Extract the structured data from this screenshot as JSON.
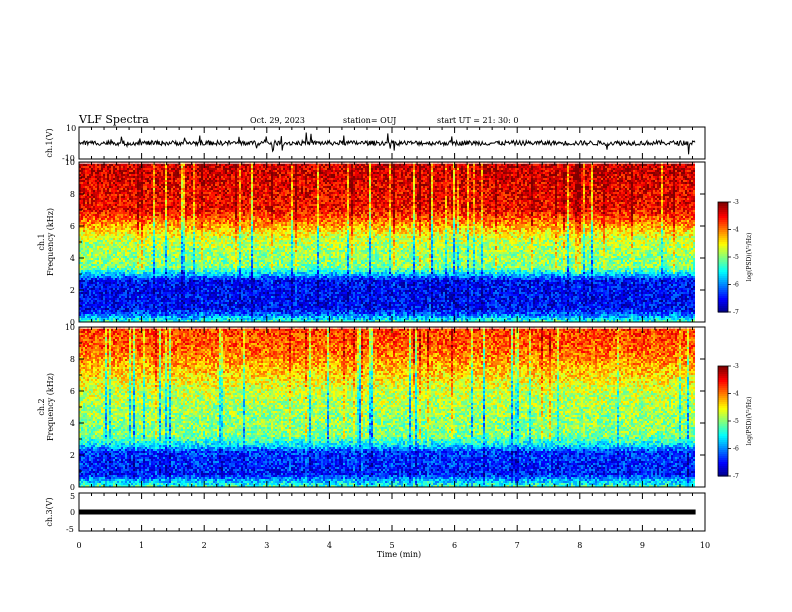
{
  "header": {
    "title": "VLF Spectra",
    "date": "Oct. 29, 2023",
    "station": "station= OUJ",
    "start": "start  UT =   21: 30: 0"
  },
  "chart_data": {
    "type": "heatmap",
    "xlabel": "Time  (min)",
    "xlim": [
      0,
      10
    ],
    "xticks": [
      "0",
      "1",
      "2",
      "3",
      "4",
      "5",
      "6",
      "7",
      "8",
      "9",
      "10"
    ],
    "data_end_min": 9.85,
    "panels": [
      {
        "name": "ch.1 waveform",
        "ylabel": "ch.1(V)",
        "ylim": [
          -10,
          10
        ],
        "yticks": [
          "10",
          "-10"
        ],
        "trace_level_v": 0,
        "trace_amplitude_v": 3
      },
      {
        "name": "ch.1 spectrogram",
        "ylabel_channel": "ch.1",
        "ylabel": "Frequency  (kHz)",
        "ylim": [
          0,
          10
        ],
        "yticks": [
          "0",
          "2",
          "4",
          "6",
          "8",
          "10"
        ],
        "colorbar_label": "log(PSD)(V²/Hz)",
        "colorbar_ticks": [
          "-3",
          "-4",
          "-5",
          "-6",
          "-7"
        ],
        "colorbar_range": [
          -7,
          -3
        ],
        "profile_khz": [
          0,
          0.4,
          0.8,
          2.6,
          3.0,
          3.4,
          4.2,
          5.2,
          6.2,
          7.0,
          10
        ],
        "profile_log_psd": [
          -5.2,
          -6.0,
          -6.5,
          -6.5,
          -5.7,
          -5.0,
          -4.9,
          -4.7,
          -4.0,
          -3.5,
          -3.3
        ]
      },
      {
        "name": "ch.2 spectrogram",
        "ylabel_channel": "ch.2",
        "ylabel": "Frequency  (kHz)",
        "ylim": [
          0,
          10
        ],
        "yticks": [
          "0",
          "2",
          "4",
          "6",
          "8",
          "10"
        ],
        "colorbar_label": "log(PSD)(V²/Hz)",
        "colorbar_ticks": [
          "-3",
          "-4",
          "-5",
          "-6",
          "-7"
        ],
        "colorbar_range": [
          -7,
          -3
        ],
        "profile_khz": [
          0,
          0.4,
          0.8,
          2.2,
          2.6,
          3.2,
          4.5,
          6.0,
          7.5,
          8.5,
          10
        ],
        "profile_log_psd": [
          -5.2,
          -5.8,
          -6.4,
          -6.3,
          -5.6,
          -5.0,
          -4.9,
          -4.7,
          -4.2,
          -3.9,
          -3.7
        ]
      },
      {
        "name": "ch.3 waveform",
        "ylabel": "ch.3(V)",
        "ylim": [
          -5,
          5
        ],
        "yticks": [
          "5",
          "0",
          "-5"
        ],
        "trace_level_v": 0,
        "trace_amplitude_v": 0.2
      }
    ]
  }
}
